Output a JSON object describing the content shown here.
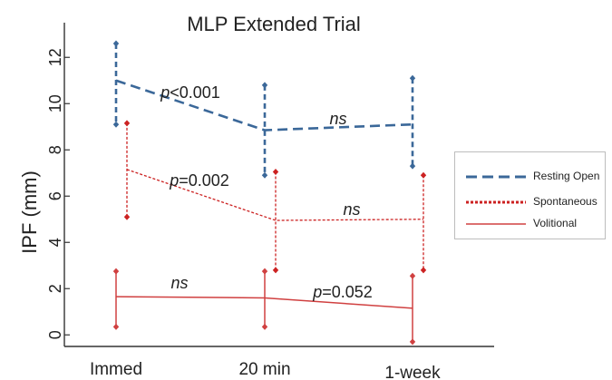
{
  "chart_data": {
    "type": "line",
    "title": "MLP Extended Trial",
    "ylabel": "IPF (mm)",
    "xlabel": "",
    "categories": [
      "Immed",
      "20 min",
      "1-week"
    ],
    "ylim": [
      -0.5,
      13.5
    ],
    "yticks": [
      0,
      2,
      4,
      6,
      8,
      10,
      12
    ],
    "grid": false,
    "legend_position": "right",
    "series": [
      {
        "name": "Resting Open",
        "style": "dashed",
        "color": "#3b6899",
        "values": [
          11.0,
          8.85,
          9.1
        ],
        "error_low": [
          9.1,
          6.9,
          7.3
        ],
        "error_high": [
          12.6,
          10.8,
          11.1
        ]
      },
      {
        "name": "Spontaneous",
        "style": "dotted",
        "color": "#cc2222",
        "values": [
          7.15,
          4.95,
          5.0
        ],
        "error_low": [
          5.1,
          2.8,
          2.8
        ],
        "error_high": [
          9.15,
          7.05,
          6.9
        ]
      },
      {
        "name": "Volitional",
        "style": "solid",
        "color": "#d04040",
        "values": [
          1.65,
          1.6,
          1.15
        ],
        "error_low": [
          0.35,
          0.35,
          -0.3
        ],
        "error_high": [
          2.75,
          2.75,
          2.55
        ]
      }
    ],
    "annotations": [
      {
        "italic": "p",
        "text": "<0.001",
        "series": 0,
        "between": [
          0,
          1
        ]
      },
      {
        "italic": "ns",
        "text": "",
        "series": 0,
        "between": [
          1,
          2
        ]
      },
      {
        "italic": "p",
        "text": "=0.002",
        "series": 1,
        "between": [
          0,
          1
        ]
      },
      {
        "italic": "ns",
        "text": "",
        "series": 1,
        "between": [
          1,
          2
        ]
      },
      {
        "italic": "ns",
        "text": "",
        "series": 2,
        "between": [
          0,
          1
        ]
      },
      {
        "italic": "p",
        "text": "=0.052",
        "series": 2,
        "between": [
          1,
          2
        ]
      }
    ]
  }
}
